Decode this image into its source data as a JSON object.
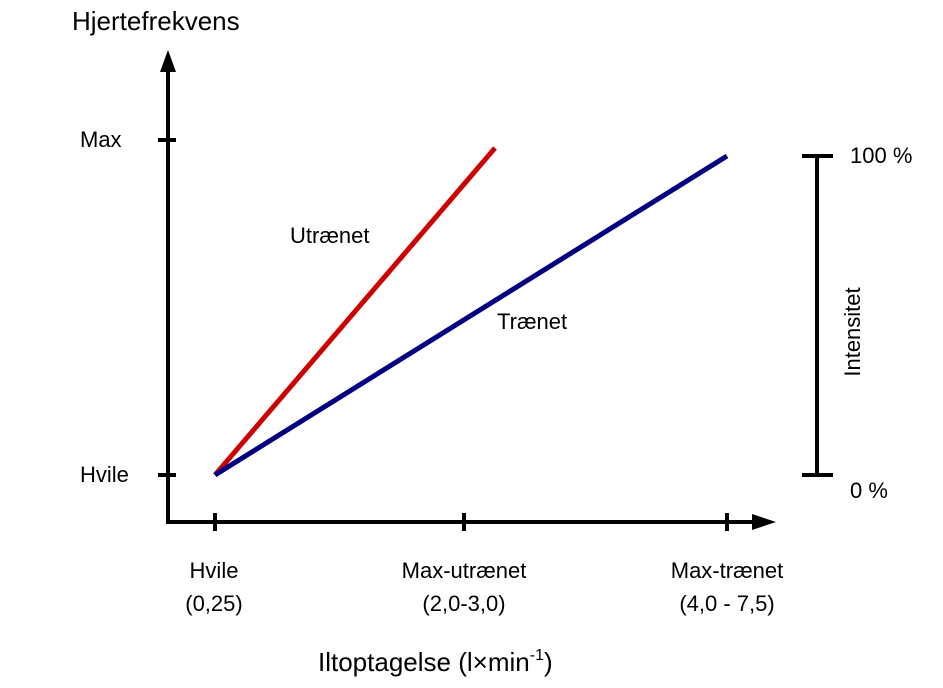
{
  "y_axis": {
    "title": "Hjertefrekvens",
    "ticks": [
      "Max",
      "Hvile"
    ]
  },
  "x_axis": {
    "ticks": [
      {
        "name": "Hvile",
        "range": "(0,25)"
      },
      {
        "name": "Max-utrænet",
        "range": "(2,0-3,0)"
      },
      {
        "name": "Max-trænet",
        "range": "(4,0 - 7,5)"
      }
    ],
    "title": {
      "text": "Iltoptagelse  (l×min",
      "superscript": "-1",
      "closing": ")"
    }
  },
  "lines": [
    {
      "label": "Utrænet"
    },
    {
      "label": "Trænet"
    }
  ],
  "intensity_scale": {
    "title": "Intensitet",
    "top": "100 %",
    "bottom": "0 %"
  }
}
